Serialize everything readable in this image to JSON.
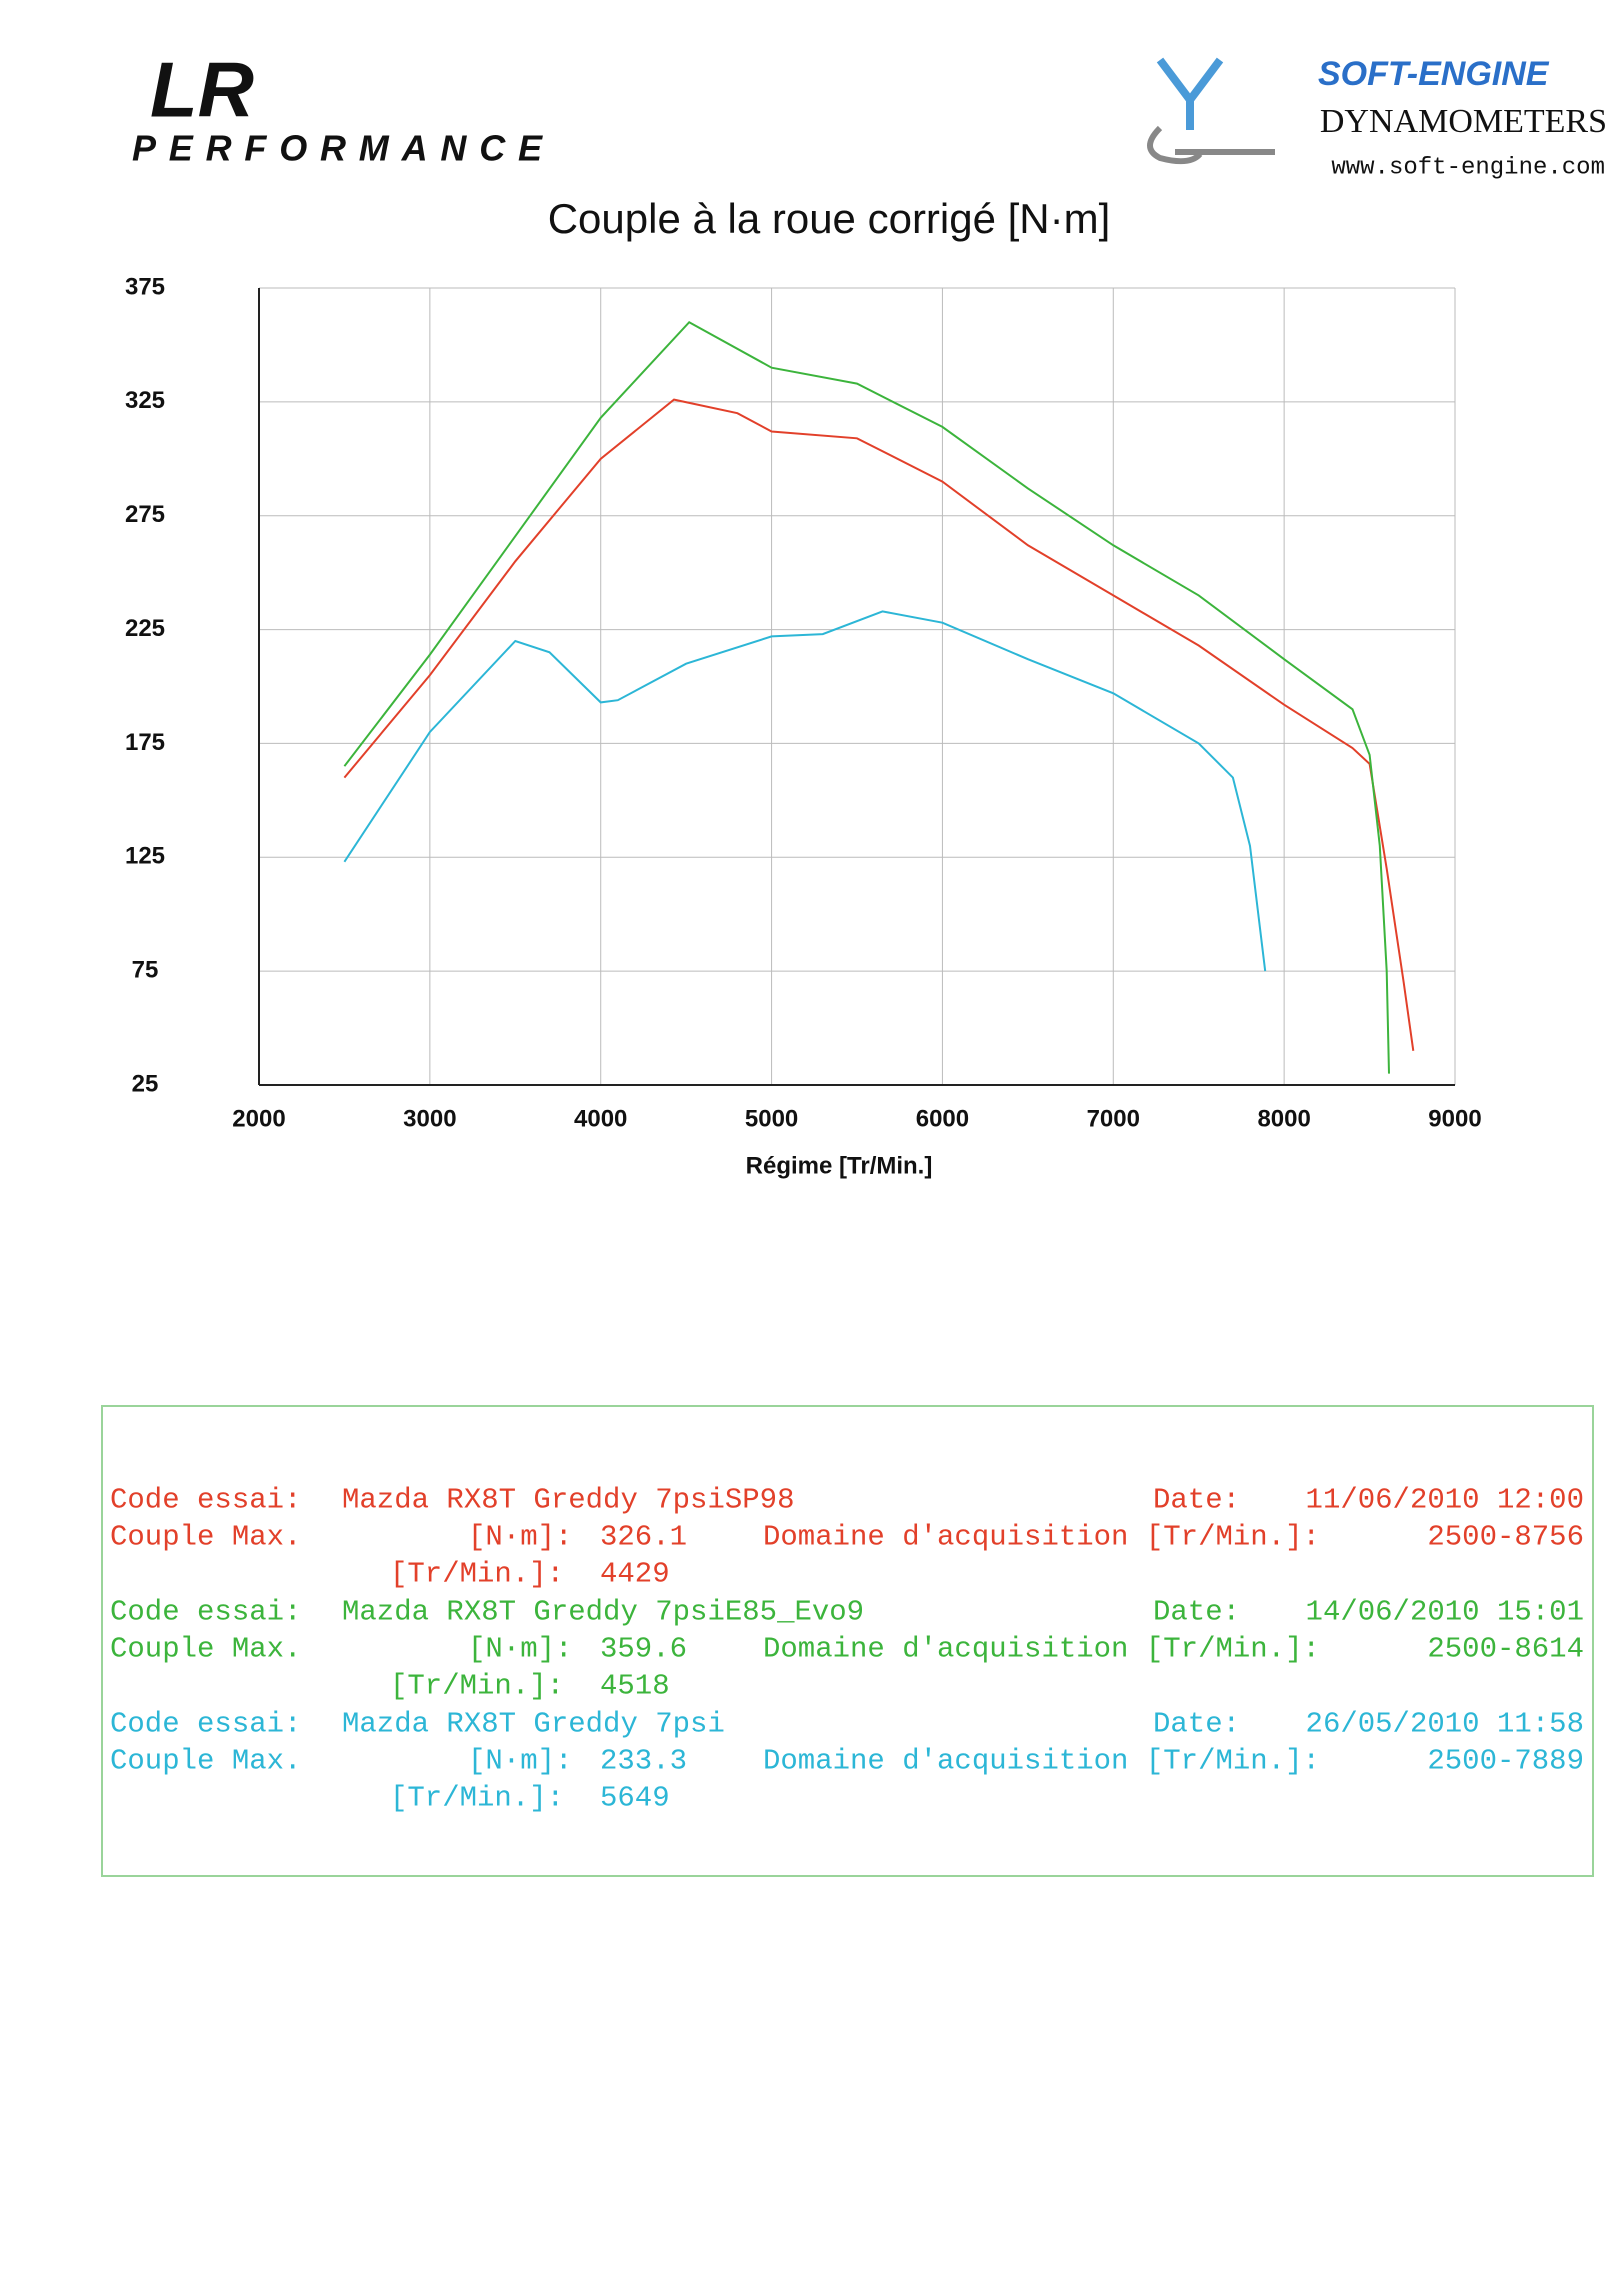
{
  "header": {
    "logo_left": "LR",
    "logo_left_sub": "PERFORMANCE",
    "logo_right": "SOFT-ENGINE",
    "logo_right_sub": "DYNAMOMETERS",
    "website": "www.soft-engine.com"
  },
  "chart_data": {
    "type": "line",
    "title": "Couple à la roue corrigé [N·m]",
    "x_label": "Régime [Tr/Min.]",
    "xlim": [
      2000,
      9000
    ],
    "xticks": [
      2000,
      3000,
      4000,
      5000,
      6000,
      7000,
      8000,
      9000
    ],
    "ylim": [
      25,
      375
    ],
    "yticks": [
      25,
      75,
      125,
      175,
      225,
      275,
      325,
      375
    ],
    "grid": true,
    "series": [
      {
        "color": "#e2402a",
        "x": [
          2500,
          3000,
          3500,
          4000,
          4429,
          4800,
          5000,
          5500,
          6000,
          6500,
          7000,
          7500,
          8000,
          8400,
          8500,
          8600,
          8700,
          8756
        ],
        "values": [
          160,
          205,
          255,
          300,
          326,
          320,
          312,
          309,
          290,
          262,
          240,
          218,
          192,
          173,
          166,
          120,
          70,
          40
        ]
      },
      {
        "color": "#3cb43c",
        "x": [
          2500,
          3000,
          3500,
          4000,
          4518,
          5000,
          5500,
          6000,
          6500,
          7000,
          7500,
          8000,
          8400,
          8500,
          8560,
          8600,
          8614
        ],
        "values": [
          165,
          214,
          266,
          318,
          360,
          340,
          333,
          314,
          287,
          262,
          240,
          212,
          190,
          170,
          130,
          75,
          30
        ]
      },
      {
        "color": "#2cb6d6",
        "x": [
          2500,
          3000,
          3500,
          3700,
          4000,
          4100,
          4500,
          5000,
          5300,
          5649,
          6000,
          6500,
          7000,
          7500,
          7700,
          7800,
          7889
        ],
        "values": [
          123,
          180,
          220,
          215,
          193,
          194,
          210,
          222,
          223,
          233,
          228,
          212,
          197,
          175,
          160,
          130,
          75
        ]
      }
    ]
  },
  "tests": [
    {
      "color": "#e2402a",
      "code_label": "Code essai:",
      "code": "Mazda RX8T Greddy 7psiSP98",
      "date_label": "Date:",
      "date": "11/06/2010 12:00",
      "max_label": "Couple Max.",
      "torque_label": "[N·m]:",
      "torque": "326.1",
      "domain_label": "Domaine d'acquisition [Tr/Min.]:",
      "domain": "2500-8756",
      "rpm_label": "[Tr/Min.]:",
      "rpm": "4429"
    },
    {
      "color": "#3cb43c",
      "code_label": "Code essai:",
      "code": "Mazda RX8T Greddy 7psiE85_Evo9",
      "date_label": "Date:",
      "date": "14/06/2010 15:01",
      "max_label": "Couple Max.",
      "torque_label": "[N·m]:",
      "torque": "359.6",
      "domain_label": "Domaine d'acquisition [Tr/Min.]:",
      "domain": "2500-8614",
      "rpm_label": "[Tr/Min.]:",
      "rpm": "4518"
    },
    {
      "color": "#2cb6d6",
      "code_label": "Code essai:",
      "code": "Mazda RX8T Greddy 7psi",
      "date_label": "Date:",
      "date": "26/05/2010 11:58",
      "max_label": "Couple Max.",
      "torque_label": "[N·m]:",
      "torque": "233.3",
      "domain_label": "Domaine d'acquisition [Tr/Min.]:",
      "domain": "2500-7889",
      "rpm_label": "[Tr/Min.]:",
      "rpm": "5649"
    }
  ]
}
